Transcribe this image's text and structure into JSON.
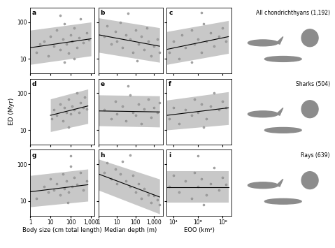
{
  "chart_data": [
    {
      "type": "scatter",
      "title": "a",
      "log": true,
      "tick_labels": "y",
      "color": "#9a9a9a",
      "annotations": [
        "All chondrichthyans (1,192)"
      ],
      "xlim": [
        1,
        1500
      ],
      "xticks": [
        1,
        10,
        100,
        {
          "value": 1000,
          "label": "1,000"
        }
      ],
      "ylim": [
        4,
        250
      ],
      "yticks": [
        10,
        100
      ],
      "x": [
        2,
        3,
        5,
        8,
        10,
        15,
        20,
        30,
        40,
        50,
        60,
        80,
        100,
        120,
        150,
        200,
        250,
        300,
        400,
        600,
        800,
        50,
        150,
        30
      ],
      "y": [
        15,
        25,
        30,
        12,
        40,
        22,
        60,
        18,
        35,
        90,
        25,
        14,
        45,
        30,
        70,
        20,
        38,
        120,
        28,
        50,
        33,
        8,
        10,
        150
      ],
      "fit": {
        "x": [
          1,
          1000
        ],
        "y": [
          20,
          35
        ]
      },
      "band": {
        "x": [
          1,
          1000
        ],
        "lower": [
          7,
          12
        ],
        "upper": [
          60,
          100
        ]
      }
    },
    {
      "type": "scatter",
      "title": "b",
      "log": true,
      "tick_labels": false,
      "color": "#9a9a9a",
      "xlim": [
        1,
        3000
      ],
      "xticks": [
        1,
        10,
        100,
        {
          "value": 1000,
          "label": "1,000"
        }
      ],
      "ylim": [
        4,
        250
      ],
      "yticks": [
        10,
        100
      ],
      "x": [
        2,
        3,
        5,
        8,
        10,
        15,
        20,
        30,
        50,
        70,
        100,
        150,
        200,
        300,
        500,
        700,
        1000,
        1500,
        2000,
        40,
        120,
        400
      ],
      "y": [
        40,
        80,
        25,
        55,
        30,
        100,
        20,
        45,
        35,
        15,
        60,
        25,
        40,
        18,
        30,
        12,
        22,
        35,
        15,
        170,
        9,
        70
      ],
      "fit": {
        "x": [
          1,
          2000
        ],
        "y": [
          45,
          22
        ]
      },
      "band": {
        "x": [
          1,
          2000
        ],
        "lower": [
          15,
          8
        ],
        "upper": [
          130,
          70
        ]
      }
    },
    {
      "type": "scatter",
      "title": "c",
      "log": true,
      "tick_labels": false,
      "color": "#9a9a9a",
      "xlim": [
        3000,
        500000000
      ],
      "xticks": [
        {
          "value": 10000,
          "label": "10⁴"
        },
        {
          "value": 1000000,
          "label": "10⁶"
        },
        {
          "value": 100000000,
          "label": "10⁸"
        }
      ],
      "ylim": [
        4,
        250
      ],
      "yticks": [
        10,
        100
      ],
      "x": [
        5000,
        10000,
        30000,
        50000,
        100000,
        300000,
        500000,
        1000000,
        2000000,
        3000000,
        5000000,
        10000000,
        20000000,
        50000000,
        100000000,
        200000000,
        300000,
        2000000
      ],
      "y": [
        15,
        30,
        10,
        45,
        20,
        60,
        25,
        35,
        15,
        90,
        30,
        50,
        22,
        40,
        70,
        30,
        8,
        180
      ],
      "fit": {
        "x": [
          3000,
          300000000
        ],
        "y": [
          18,
          40
        ]
      },
      "band": {
        "x": [
          3000,
          300000000
        ],
        "lower": [
          7,
          14
        ],
        "upper": [
          55,
          110
        ]
      }
    },
    {
      "type": "scatter",
      "title": "d",
      "log": true,
      "tick_labels": "y",
      "color": "#9a9a9a",
      "y_label": "ED (Myr)",
      "annotations": [
        "Sharks (504)"
      ],
      "xlim": [
        1,
        1500
      ],
      "xticks": [
        1,
        10,
        100,
        {
          "value": 1000,
          "label": "1,000"
        }
      ],
      "ylim": [
        4,
        250
      ],
      "yticks": [
        10,
        100
      ],
      "x": [
        12,
        15,
        20,
        30,
        40,
        50,
        60,
        80,
        100,
        120,
        150,
        200,
        250,
        300,
        400,
        500,
        600,
        80
      ],
      "y": [
        20,
        35,
        25,
        50,
        18,
        40,
        30,
        70,
        28,
        45,
        35,
        100,
        30,
        55,
        40,
        80,
        38,
        12
      ],
      "fit": {
        "x": [
          10,
          700
        ],
        "y": [
          25,
          45
        ]
      },
      "band": {
        "x": [
          10,
          700
        ],
        "lower": [
          9,
          15
        ],
        "upper": [
          70,
          130
        ]
      }
    },
    {
      "type": "scatter",
      "title": "e",
      "log": true,
      "tick_labels": false,
      "color": "#9a9a9a",
      "xlim": [
        1,
        3000
      ],
      "xticks": [
        1,
        10,
        100,
        {
          "value": 1000,
          "label": "1,000"
        }
      ],
      "ylim": [
        4,
        250
      ],
      "yticks": [
        10,
        100
      ],
      "x": [
        2,
        5,
        8,
        10,
        20,
        30,
        50,
        70,
        100,
        150,
        200,
        300,
        500,
        700,
        1000,
        1500,
        2000,
        40
      ],
      "y": [
        35,
        20,
        60,
        28,
        45,
        18,
        90,
        30,
        25,
        50,
        15,
        38,
        70,
        22,
        40,
        30,
        55,
        160
      ],
      "fit": {
        "x": [
          1,
          2000
        ],
        "y": [
          33,
          31
        ]
      },
      "band": {
        "x": [
          1,
          2000
        ],
        "lower": [
          13,
          12
        ],
        "upper": [
          90,
          85
        ]
      }
    },
    {
      "type": "scatter",
      "title": "f",
      "log": true,
      "tick_labels": false,
      "color": "#9a9a9a",
      "xlim": [
        3000,
        500000000
      ],
      "xticks": [
        {
          "value": 10000,
          "label": "10⁴"
        },
        {
          "value": 1000000,
          "label": "10⁶"
        },
        {
          "value": 100000000,
          "label": "10⁸"
        }
      ],
      "ylim": [
        4,
        250
      ],
      "yticks": [
        10,
        100
      ],
      "x": [
        5000,
        10000,
        30000,
        100000,
        300000,
        500000,
        1000000,
        2000000,
        5000000,
        10000000,
        20000000,
        50000000,
        100000000,
        200000000,
        3000000
      ],
      "y": [
        20,
        40,
        15,
        35,
        25,
        70,
        30,
        50,
        20,
        45,
        100,
        35,
        60,
        40,
        12
      ],
      "fit": {
        "x": [
          3000,
          300000000
        ],
        "y": [
          25,
          40
        ]
      },
      "band": {
        "x": [
          3000,
          300000000
        ],
        "lower": [
          10,
          14
        ],
        "upper": [
          65,
          110
        ]
      }
    },
    {
      "type": "scatter",
      "title": "g",
      "log": true,
      "tick_labels": true,
      "color": "#9a9a9a",
      "x_label": "Body size (cm total length)",
      "annotations": [
        "Rays (639)"
      ],
      "xlim": [
        1,
        1500
      ],
      "xticks": [
        1,
        10,
        100,
        {
          "value": 1000,
          "label": "1,000"
        }
      ],
      "ylim": [
        4,
        250
      ],
      "yticks": [
        10,
        100
      ],
      "x": [
        2,
        5,
        8,
        10,
        15,
        20,
        30,
        40,
        50,
        60,
        80,
        100,
        120,
        150,
        200,
        300,
        400,
        600,
        70,
        100
      ],
      "y": [
        12,
        25,
        18,
        40,
        20,
        30,
        15,
        55,
        22,
        35,
        18,
        90,
        25,
        45,
        28,
        60,
        20,
        35,
        9,
        170
      ],
      "fit": {
        "x": [
          1,
          700
        ],
        "y": [
          18,
          28
        ]
      },
      "band": {
        "x": [
          1,
          700
        ],
        "lower": [
          7,
          10
        ],
        "upper": [
          50,
          75
        ]
      }
    },
    {
      "type": "scatter",
      "title": "h",
      "log": true,
      "tick_labels": "x",
      "color": "#9a9a9a",
      "x_label": "Median depth (m)",
      "xlim": [
        1,
        3000
      ],
      "xticks": [
        1,
        10,
        100,
        {
          "value": 1000,
          "label": "1,000"
        }
      ],
      "ylim": [
        4,
        250
      ],
      "yticks": [
        10,
        100
      ],
      "x": [
        2,
        3,
        5,
        8,
        10,
        15,
        20,
        30,
        50,
        70,
        100,
        150,
        200,
        300,
        500,
        700,
        1000,
        1500,
        2000,
        50
      ],
      "y": [
        60,
        110,
        40,
        75,
        30,
        55,
        120,
        35,
        25,
        50,
        18,
        30,
        12,
        22,
        15,
        9,
        14,
        11,
        8,
        180
      ],
      "fit": {
        "x": [
          1,
          2000
        ],
        "y": [
          55,
          13
        ]
      },
      "band": {
        "x": [
          1,
          2000
        ],
        "lower": [
          20,
          4.5
        ],
        "upper": [
          140,
          40
        ]
      }
    },
    {
      "type": "scatter",
      "title": "i",
      "log": true,
      "tick_labels": "x",
      "color": "#9a9a9a",
      "x_label": "EOO (km²)",
      "xlim": [
        3000,
        500000000
      ],
      "xticks": [
        {
          "value": 10000,
          "label": "10⁴"
        },
        {
          "value": 1000000,
          "label": "10⁶"
        },
        {
          "value": 100000000,
          "label": "10⁸"
        }
      ],
      "ylim": [
        4,
        250
      ],
      "yticks": [
        10,
        100
      ],
      "x": [
        5000,
        10000,
        30000,
        100000,
        300000,
        500000,
        1000000,
        2000000,
        5000000,
        10000000,
        20000000,
        50000000,
        100000000,
        200000000,
        1000000,
        3000000
      ],
      "y": [
        25,
        50,
        18,
        35,
        12,
        60,
        25,
        40,
        15,
        30,
        80,
        20,
        45,
        28,
        170,
        8
      ],
      "fit": {
        "x": [
          3000,
          300000000
        ],
        "y": [
          24,
          24
        ]
      },
      "band": {
        "x": [
          3000,
          300000000
        ],
        "lower": [
          9,
          9
        ],
        "upper": [
          65,
          65
        ]
      }
    }
  ]
}
